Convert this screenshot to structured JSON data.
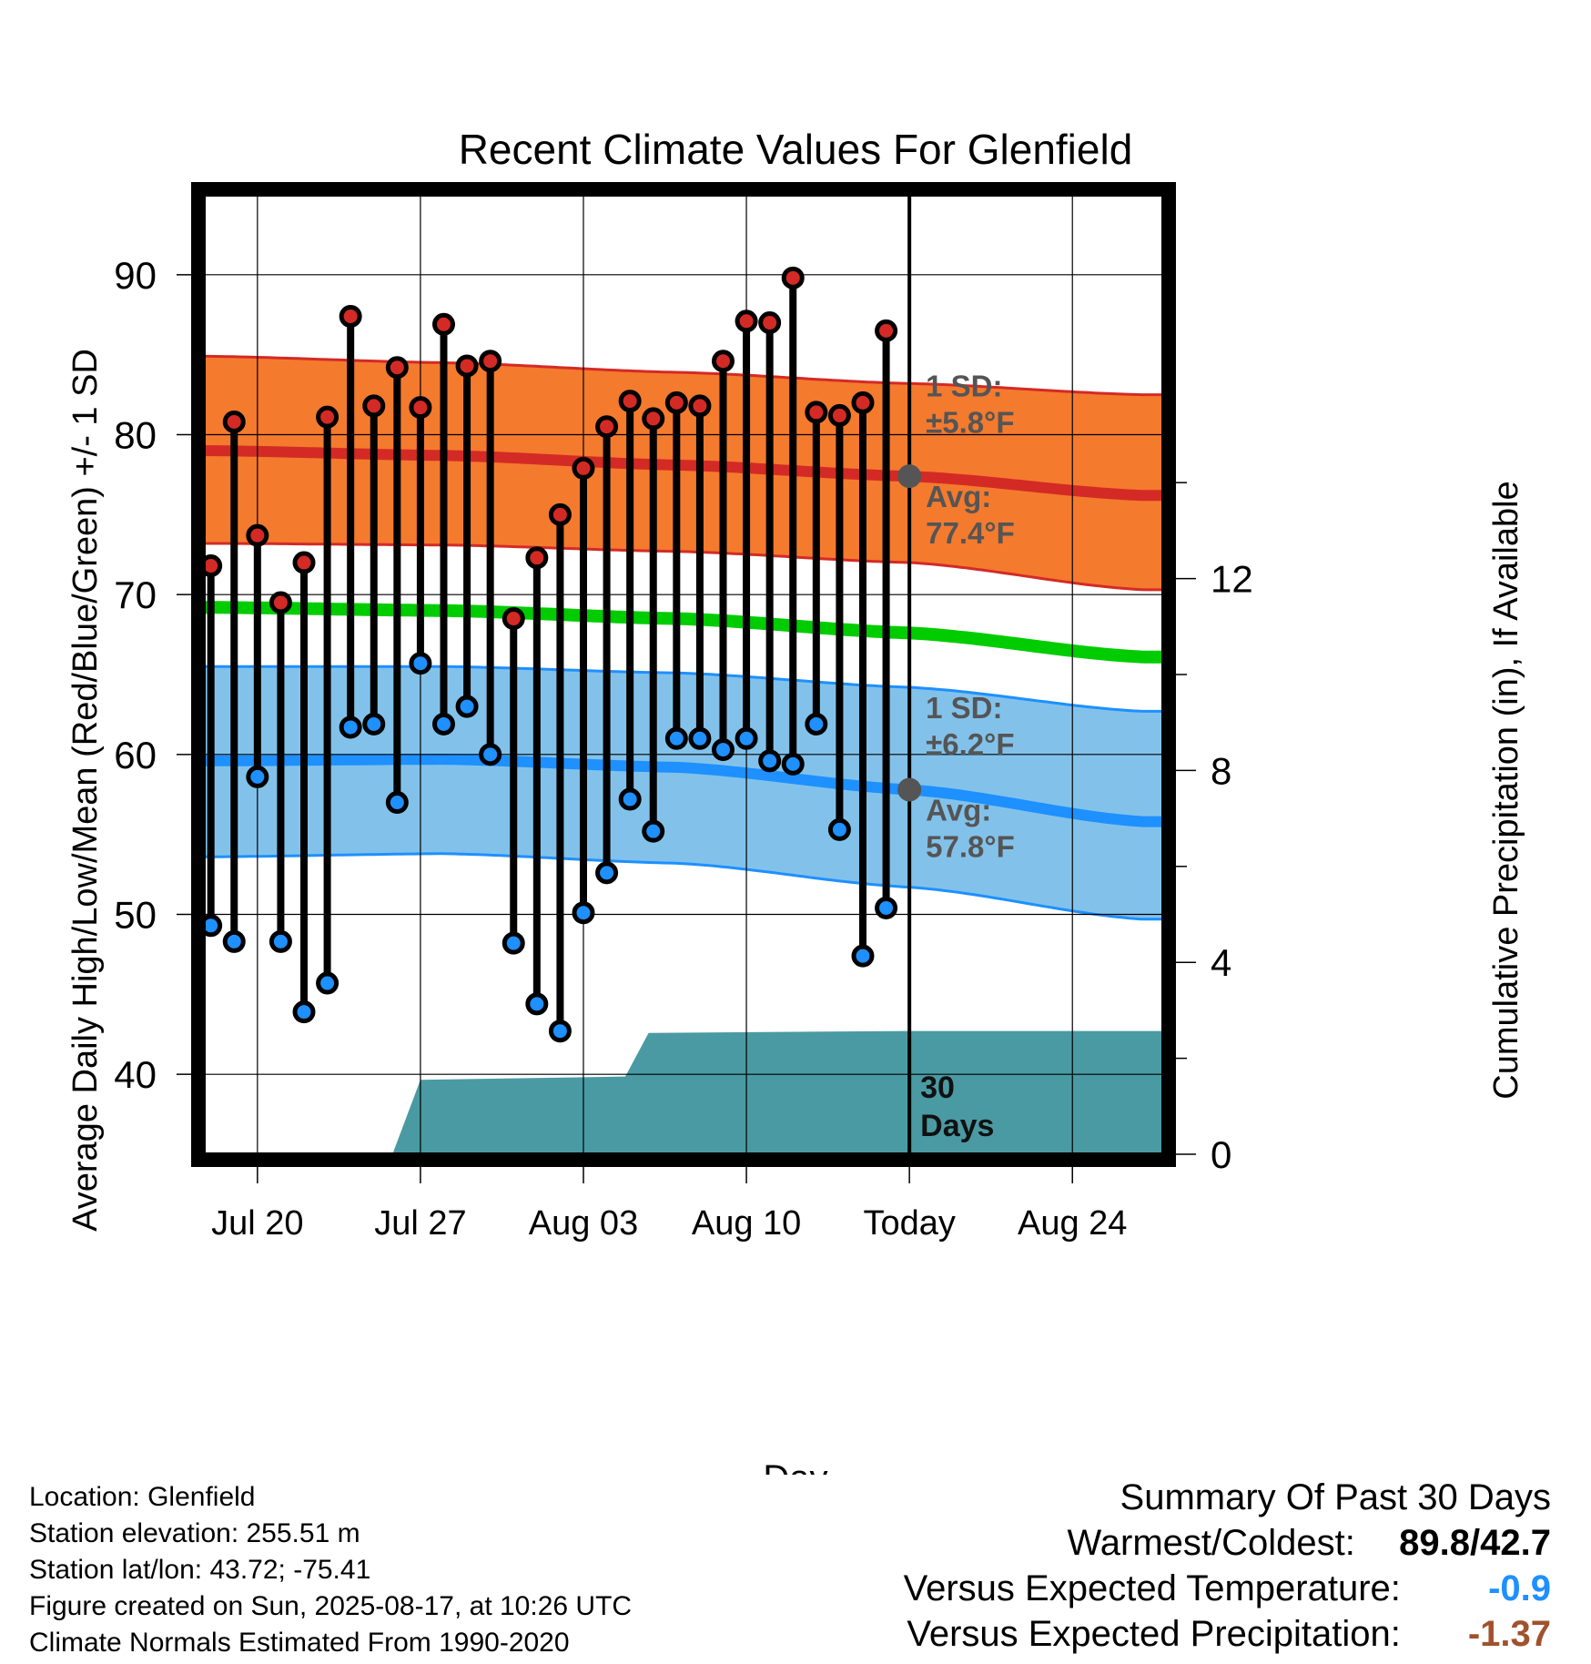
{
  "chart_data": {
    "type": "line",
    "title": "Recent Climate Values For Glenfield",
    "xlabel": "Day",
    "ylabel": "Average Daily High/Low/Mean (Red/Blue/Green) +/- 1 SD",
    "y2label": "Cumulative Precipitation (in), If Available",
    "ylim": [
      35,
      95
    ],
    "y_ticks": [
      40,
      50,
      60,
      70,
      80,
      90
    ],
    "y2lim": [
      0,
      20
    ],
    "y2_ticks": [
      0,
      4,
      8,
      12
    ],
    "x_range_days": [
      -30.3,
      10.9
    ],
    "x_ticks": [
      {
        "day": -28,
        "label": "Jul 20"
      },
      {
        "day": -21,
        "label": "Jul 27"
      },
      {
        "day": -14,
        "label": "Aug 03"
      },
      {
        "day": -7,
        "label": "Aug 10"
      },
      {
        "day": 0,
        "label": "Today"
      },
      {
        "day": 7,
        "label": "Aug 24"
      }
    ],
    "grid": true,
    "highs": [
      71.8,
      80.8,
      73.7,
      69.5,
      72.0,
      81.1,
      87.4,
      81.8,
      84.2,
      81.7,
      86.9,
      84.3,
      84.6,
      68.5,
      72.3,
      75.0,
      77.9,
      80.5,
      82.1,
      81.0,
      82.0,
      81.8,
      84.6,
      87.1,
      87.0,
      89.8,
      81.4,
      81.2,
      82.0,
      86.5
    ],
    "lows": [
      49.3,
      48.3,
      58.6,
      48.3,
      43.9,
      45.7,
      61.7,
      61.9,
      57.0,
      65.7,
      61.9,
      63.0,
      60.0,
      48.2,
      44.4,
      42.7,
      50.1,
      52.6,
      57.2,
      55.2,
      61.0,
      61.0,
      60.3,
      61.0,
      59.6,
      59.4,
      61.9,
      55.3,
      47.4,
      50.4
    ],
    "day_start": -30,
    "normals": {
      "x_days": [
        -30,
        -20,
        -10,
        0,
        10
      ],
      "high_avg": [
        79.0,
        78.7,
        78.1,
        77.4,
        76.2
      ],
      "high_sd_upper": [
        84.9,
        84.5,
        83.9,
        83.2,
        82.5
      ],
      "high_sd_lower": [
        73.2,
        73.1,
        72.7,
        72.0,
        70.3
      ],
      "mean": [
        69.2,
        69.0,
        68.5,
        67.6,
        66.1
      ],
      "low_avg": [
        59.6,
        59.7,
        59.2,
        57.8,
        55.8
      ],
      "low_sd_upper": [
        65.5,
        65.5,
        65.1,
        64.2,
        62.7
      ],
      "low_sd_lower": [
        53.6,
        53.8,
        53.2,
        51.7,
        49.7
      ]
    },
    "precip_cumulative": {
      "x_days": [
        -30.3,
        -22.2,
        -21.0,
        -12.2,
        -11.2,
        0,
        10.9
      ],
      "values": [
        0,
        0,
        1.55,
        1.62,
        2.53,
        2.57,
        2.57
      ]
    },
    "labels": {
      "high_sd_title": "1 SD:",
      "high_sd_value": "±5.8°F",
      "high_avg_title": "Avg:",
      "high_avg_value": "77.4°F",
      "low_sd_title": "1 SD:",
      "low_sd_value": "±6.2°F",
      "low_avg_title": "Avg:",
      "low_avg_value": "57.8°F",
      "days_line1": "30",
      "days_line2": "Days"
    },
    "colors": {
      "high_band": "#f47a2e",
      "high_line": "#d42a25",
      "mean_line": "#00cc00",
      "low_band": "#82c2ea",
      "low_line": "#1e90ff",
      "precip": "#4a9aa3",
      "high_marker": "#d42a25",
      "low_marker": "#1e90ff",
      "label_text": "#555555",
      "today_marker": "#555555"
    }
  },
  "info": {
    "location": "Location: Glenfield",
    "elevation": "Station elevation: 255.51 m",
    "latlon": "Station lat/lon: 43.72; -75.41",
    "created": "Figure created on Sun, 2025-08-17, at 10:26 UTC",
    "normals": "Climate Normals Estimated From 1990-2020"
  },
  "summary": {
    "title": "Summary Of Past 30 Days",
    "warm_cold_label": "Warmest/Coldest:",
    "warmest": "89.8",
    "sep": "/",
    "coldest": "42.7",
    "temp_label": "Versus Expected Temperature:",
    "temp_value": "-0.9",
    "temp_color": "#1e90ff",
    "precip_label": "Versus Expected Precipitation:",
    "precip_value": "-1.37",
    "precip_color": "#a0522d"
  }
}
